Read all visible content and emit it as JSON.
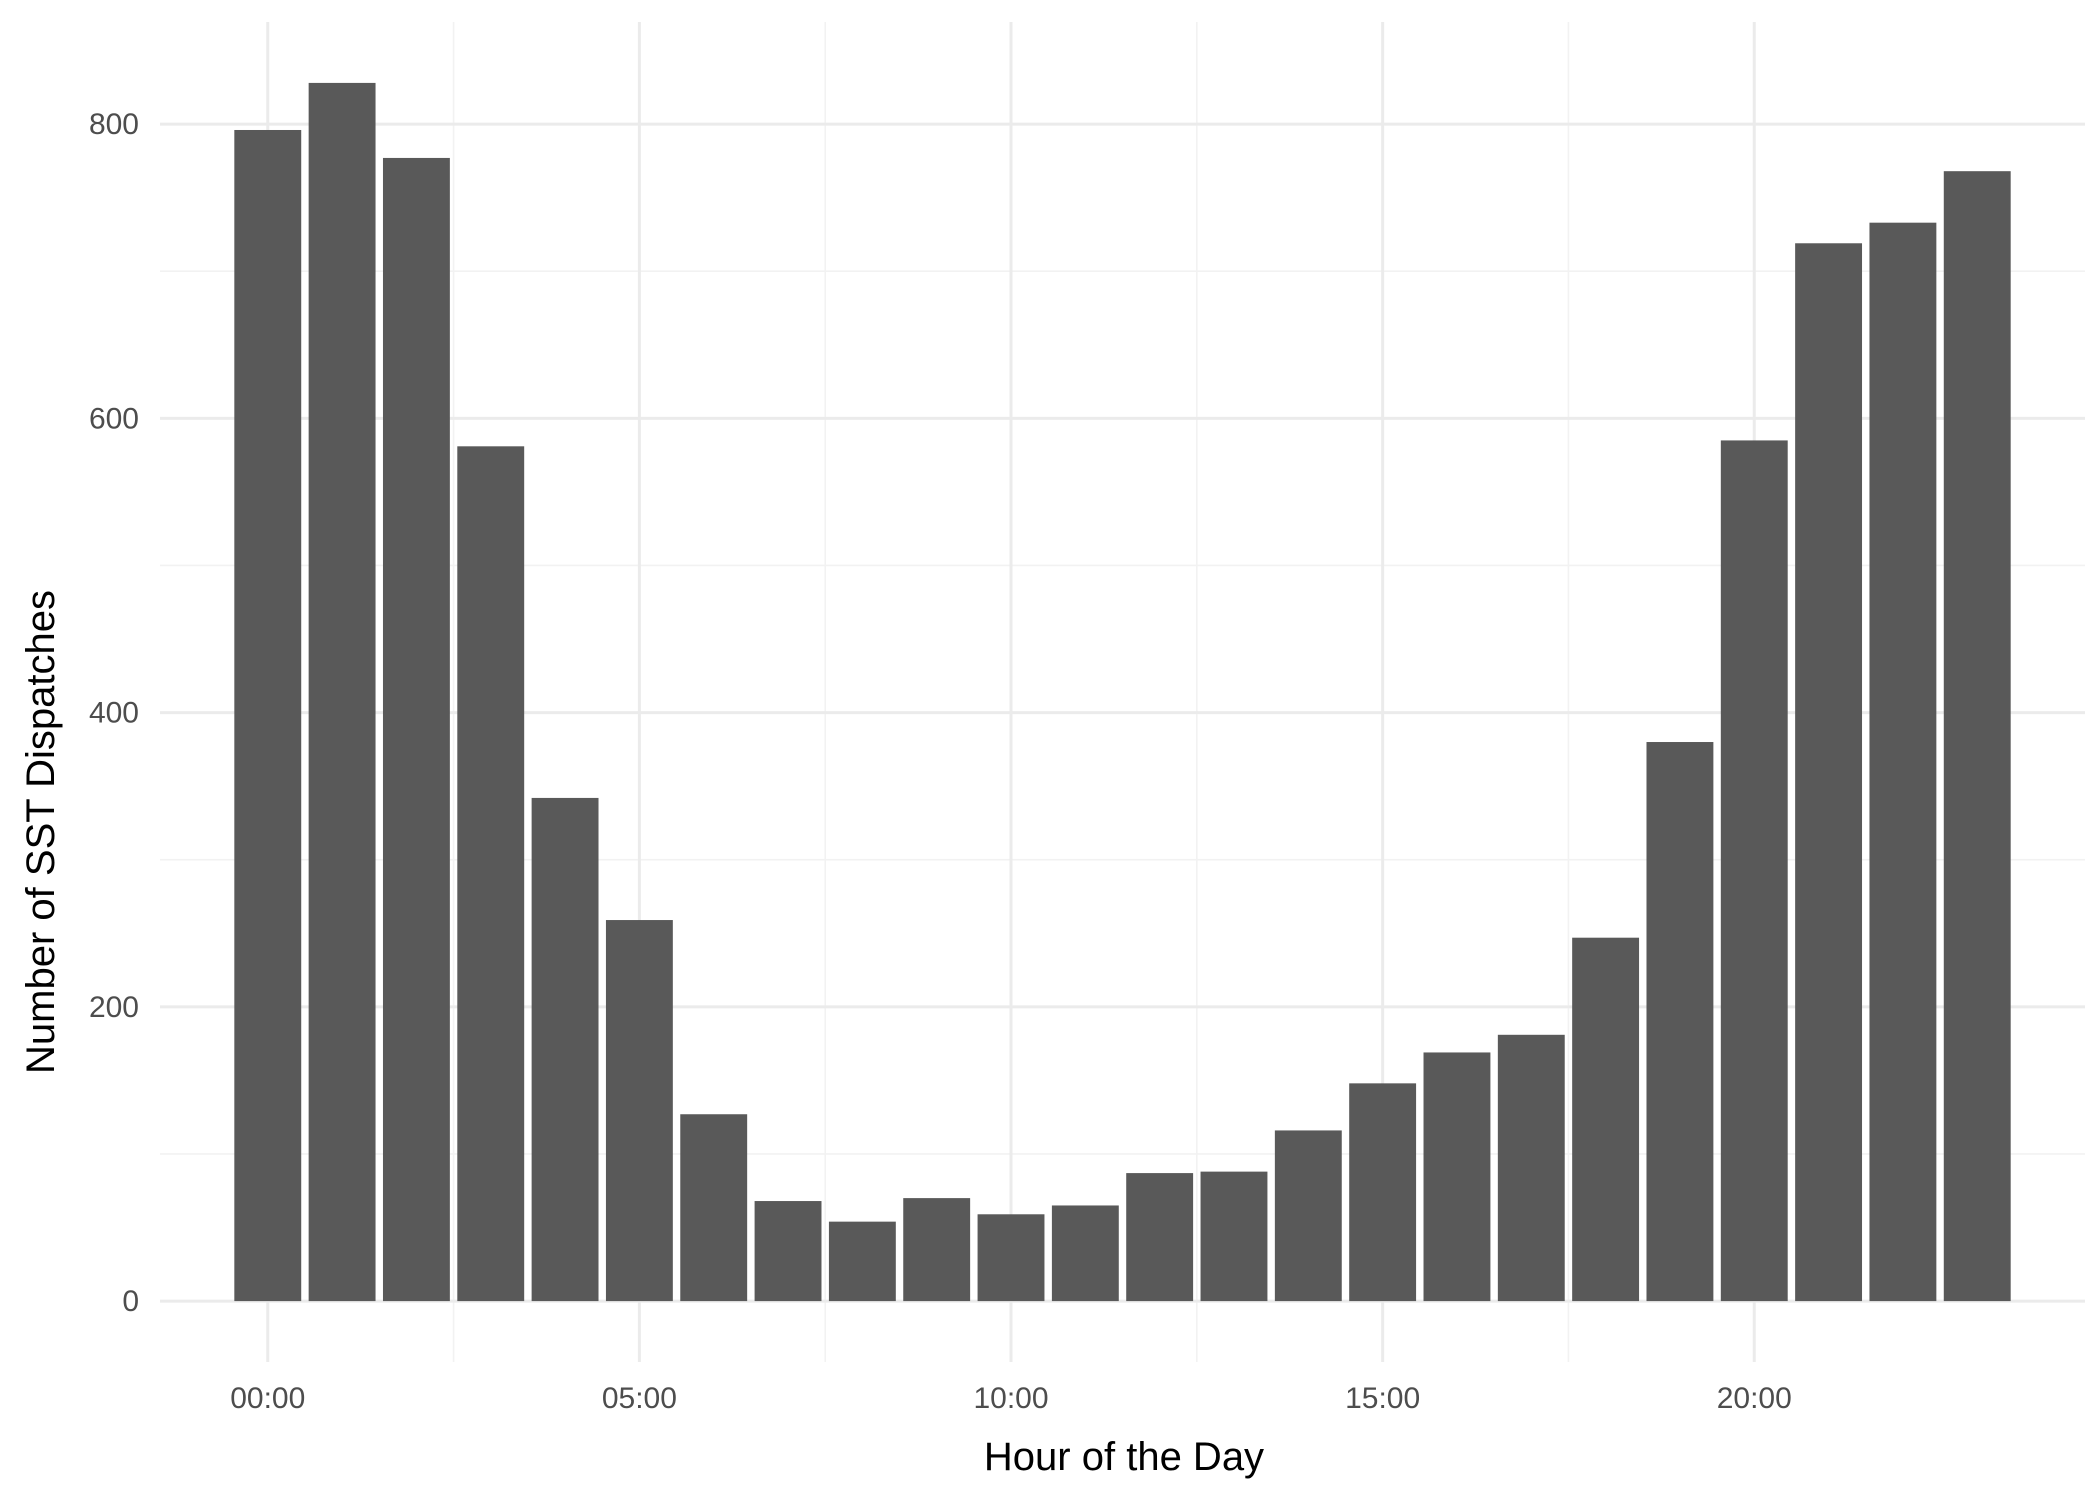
{
  "chart_data": {
    "type": "bar",
    "title": "",
    "xlabel": "Hour of the Day",
    "ylabel": "Number of SST Dispatches",
    "x": [
      0,
      1,
      2,
      3,
      4,
      5,
      6,
      7,
      8,
      9,
      10,
      11,
      12,
      13,
      14,
      15,
      16,
      17,
      18,
      19,
      20,
      21,
      22,
      23
    ],
    "values": [
      796,
      828,
      777,
      581,
      342,
      259,
      127,
      68,
      54,
      70,
      59,
      65,
      87,
      88,
      116,
      148,
      169,
      181,
      247,
      380,
      585,
      719,
      733,
      768
    ],
    "xticks": [
      {
        "value": 0,
        "label": "00:00"
      },
      {
        "value": 5,
        "label": "05:00"
      },
      {
        "value": 10,
        "label": "10:00"
      },
      {
        "value": 15,
        "label": "15:00"
      },
      {
        "value": 20,
        "label": "20:00"
      }
    ],
    "xlim": [
      -1.45,
      24.45
    ],
    "yticks": [
      0,
      200,
      400,
      600,
      800
    ],
    "ylim": [
      -41.4,
      869.4
    ],
    "grid": true,
    "legend": "none",
    "bar_color": "#595959"
  }
}
